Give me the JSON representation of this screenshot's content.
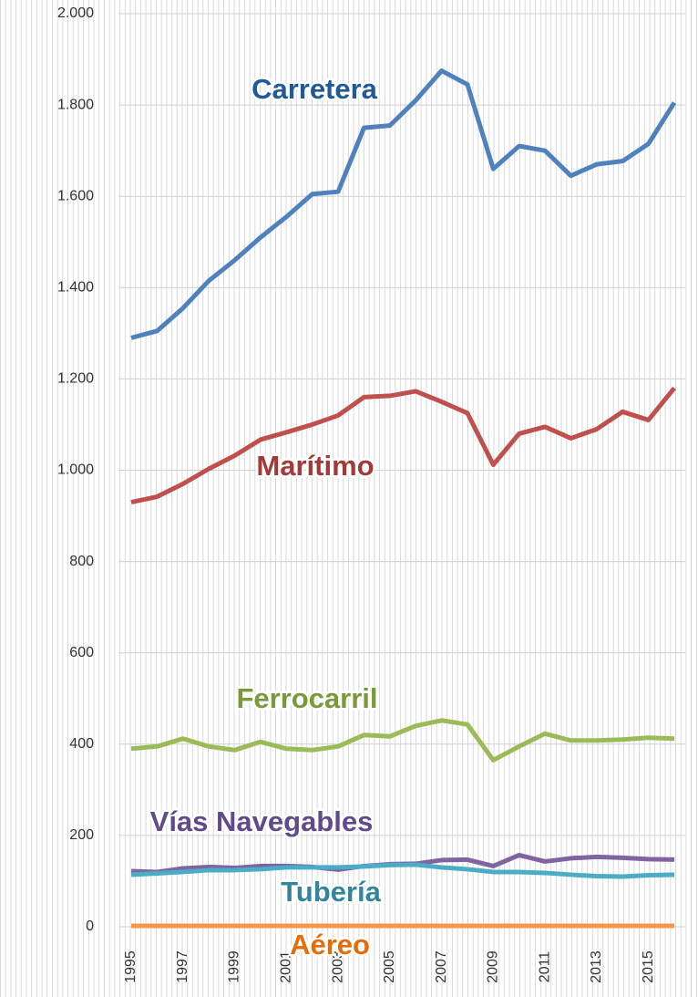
{
  "chart_data": {
    "type": "line",
    "categories": [
      "1995",
      null,
      "1997",
      null,
      "1999",
      null,
      "2001",
      null,
      "2003",
      null,
      "2005",
      null,
      "2007",
      null,
      "2009",
      null,
      "2011",
      null,
      "2013",
      null,
      "2015",
      null
    ],
    "series": [
      {
        "name": "Carretera",
        "color": "#4f81bd",
        "values": [
          1290,
          1305,
          1355,
          1415,
          1460,
          1510,
          1555,
          1605,
          1610,
          1750,
          1755,
          1810,
          1875,
          1845,
          1660,
          1710,
          1700,
          1645,
          1670,
          1677,
          1715,
          1805
        ]
      },
      {
        "name": "Marítimo",
        "color": "#c0504d",
        "values": [
          930,
          942,
          970,
          1003,
          1032,
          1067,
          1083,
          1100,
          1120,
          1160,
          1163,
          1173,
          1150,
          1125,
          1012,
          1080,
          1095,
          1070,
          1090,
          1128,
          1110,
          1180
        ]
      },
      {
        "name": "Ferrocarril",
        "color": "#9bbb59",
        "values": [
          390,
          395,
          412,
          395,
          387,
          405,
          390,
          387,
          395,
          420,
          417,
          440,
          452,
          443,
          365,
          395,
          423,
          408,
          408,
          410,
          414,
          412
        ]
      },
      {
        "name": "Vías Navegables",
        "color": "#8064a2",
        "values": [
          122,
          120,
          128,
          131,
          129,
          133,
          133,
          131,
          125,
          133,
          137,
          138,
          146,
          147,
          133,
          157,
          143,
          150,
          153,
          151,
          148,
          147
        ]
      },
      {
        "name": "Tubería",
        "color": "#4bacc6",
        "values": [
          114,
          117,
          120,
          124,
          124,
          126,
          130,
          130,
          130,
          132,
          135,
          136,
          130,
          126,
          120,
          120,
          118,
          114,
          111,
          110,
          113,
          114
        ]
      },
      {
        "name": "Aéreo",
        "color": "#f79646",
        "values": [
          2,
          2,
          2,
          2,
          2,
          2,
          2,
          2,
          2,
          2,
          2,
          2,
          2,
          2,
          2,
          2,
          2,
          2,
          2,
          2,
          2,
          2
        ]
      }
    ],
    "ylim": [
      0,
      2000
    ],
    "yticks": [
      0,
      200,
      400,
      600,
      800,
      {
        "value": 1000,
        "label": "1.000"
      },
      {
        "value": 1200,
        "label": "1.200"
      },
      {
        "value": 1400,
        "label": "1.400"
      },
      {
        "value": 1600,
        "label": "1.600"
      },
      {
        "value": 1800,
        "label": "1.800"
      },
      {
        "value": 2000,
        "label": "2.000"
      }
    ],
    "grid": true
  }
}
